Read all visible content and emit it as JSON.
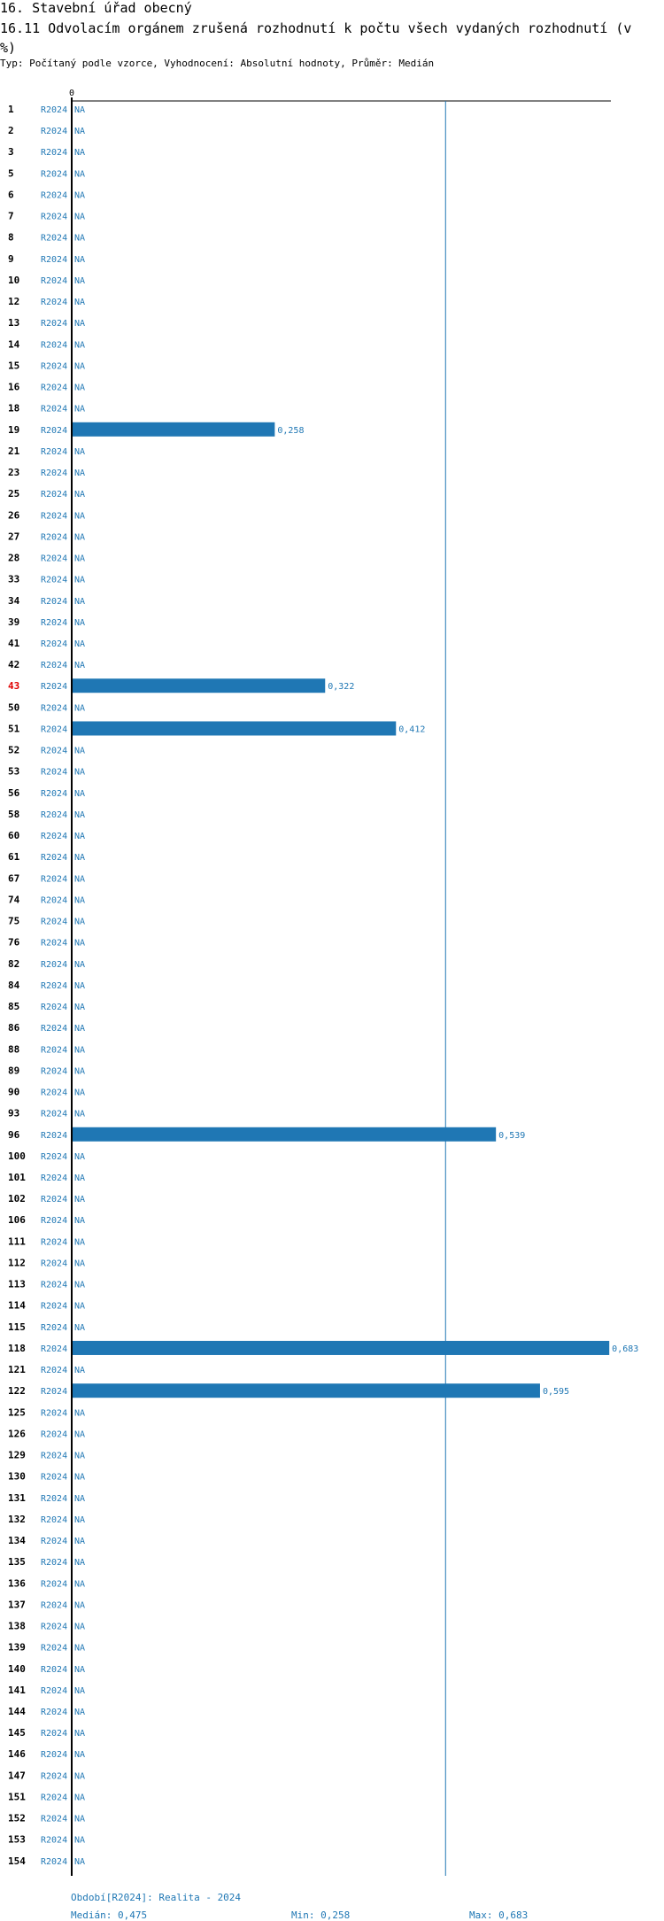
{
  "header": {
    "section_title": "16. Stavební úřad obecný",
    "chart_title": "16.11 Odvolacím orgánem zrušená rozhodnutí k počtu všech vydaných rozhodnutí (v %)",
    "subtitle": "Typ: Počítaný podle vzorce, Vyhodnocení: Absolutní hodnoty, Průměr: Medián"
  },
  "colors": {
    "bar": "#1f77b4",
    "text_blue": "#1f77b4",
    "highlight": "#e00000",
    "axis": "#000000"
  },
  "chart_data": {
    "type": "bar",
    "orientation": "horizontal",
    "axis_zero_label": "0",
    "xlim": [
      0,
      0.7
    ],
    "median_line": 0.475,
    "series_label": "R2024",
    "na_label": "NA",
    "highlighted_category": "43",
    "rows": [
      {
        "id": "1",
        "value": null,
        "label": "NA"
      },
      {
        "id": "2",
        "value": null,
        "label": "NA"
      },
      {
        "id": "3",
        "value": null,
        "label": "NA"
      },
      {
        "id": "5",
        "value": null,
        "label": "NA"
      },
      {
        "id": "6",
        "value": null,
        "label": "NA"
      },
      {
        "id": "7",
        "value": null,
        "label": "NA"
      },
      {
        "id": "8",
        "value": null,
        "label": "NA"
      },
      {
        "id": "9",
        "value": null,
        "label": "NA"
      },
      {
        "id": "10",
        "value": null,
        "label": "NA"
      },
      {
        "id": "12",
        "value": null,
        "label": "NA"
      },
      {
        "id": "13",
        "value": null,
        "label": "NA"
      },
      {
        "id": "14",
        "value": null,
        "label": "NA"
      },
      {
        "id": "15",
        "value": null,
        "label": "NA"
      },
      {
        "id": "16",
        "value": null,
        "label": "NA"
      },
      {
        "id": "18",
        "value": null,
        "label": "NA"
      },
      {
        "id": "19",
        "value": 0.258,
        "label": "0,258"
      },
      {
        "id": "21",
        "value": null,
        "label": "NA"
      },
      {
        "id": "23",
        "value": null,
        "label": "NA"
      },
      {
        "id": "25",
        "value": null,
        "label": "NA"
      },
      {
        "id": "26",
        "value": null,
        "label": "NA"
      },
      {
        "id": "27",
        "value": null,
        "label": "NA"
      },
      {
        "id": "28",
        "value": null,
        "label": "NA"
      },
      {
        "id": "33",
        "value": null,
        "label": "NA"
      },
      {
        "id": "34",
        "value": null,
        "label": "NA"
      },
      {
        "id": "39",
        "value": null,
        "label": "NA"
      },
      {
        "id": "41",
        "value": null,
        "label": "NA"
      },
      {
        "id": "42",
        "value": null,
        "label": "NA"
      },
      {
        "id": "43",
        "value": 0.322,
        "label": "0,322"
      },
      {
        "id": "50",
        "value": null,
        "label": "NA"
      },
      {
        "id": "51",
        "value": 0.412,
        "label": "0,412"
      },
      {
        "id": "52",
        "value": null,
        "label": "NA"
      },
      {
        "id": "53",
        "value": null,
        "label": "NA"
      },
      {
        "id": "56",
        "value": null,
        "label": "NA"
      },
      {
        "id": "58",
        "value": null,
        "label": "NA"
      },
      {
        "id": "60",
        "value": null,
        "label": "NA"
      },
      {
        "id": "61",
        "value": null,
        "label": "NA"
      },
      {
        "id": "67",
        "value": null,
        "label": "NA"
      },
      {
        "id": "74",
        "value": null,
        "label": "NA"
      },
      {
        "id": "75",
        "value": null,
        "label": "NA"
      },
      {
        "id": "76",
        "value": null,
        "label": "NA"
      },
      {
        "id": "82",
        "value": null,
        "label": "NA"
      },
      {
        "id": "84",
        "value": null,
        "label": "NA"
      },
      {
        "id": "85",
        "value": null,
        "label": "NA"
      },
      {
        "id": "86",
        "value": null,
        "label": "NA"
      },
      {
        "id": "88",
        "value": null,
        "label": "NA"
      },
      {
        "id": "89",
        "value": null,
        "label": "NA"
      },
      {
        "id": "90",
        "value": null,
        "label": "NA"
      },
      {
        "id": "93",
        "value": null,
        "label": "NA"
      },
      {
        "id": "96",
        "value": 0.539,
        "label": "0,539"
      },
      {
        "id": "100",
        "value": null,
        "label": "NA"
      },
      {
        "id": "101",
        "value": null,
        "label": "NA"
      },
      {
        "id": "102",
        "value": null,
        "label": "NA"
      },
      {
        "id": "106",
        "value": null,
        "label": "NA"
      },
      {
        "id": "111",
        "value": null,
        "label": "NA"
      },
      {
        "id": "112",
        "value": null,
        "label": "NA"
      },
      {
        "id": "113",
        "value": null,
        "label": "NA"
      },
      {
        "id": "114",
        "value": null,
        "label": "NA"
      },
      {
        "id": "115",
        "value": null,
        "label": "NA"
      },
      {
        "id": "118",
        "value": 0.683,
        "label": "0,683"
      },
      {
        "id": "121",
        "value": null,
        "label": "NA"
      },
      {
        "id": "122",
        "value": 0.595,
        "label": "0,595"
      },
      {
        "id": "125",
        "value": null,
        "label": "NA"
      },
      {
        "id": "126",
        "value": null,
        "label": "NA"
      },
      {
        "id": "129",
        "value": null,
        "label": "NA"
      },
      {
        "id": "130",
        "value": null,
        "label": "NA"
      },
      {
        "id": "131",
        "value": null,
        "label": "NA"
      },
      {
        "id": "132",
        "value": null,
        "label": "NA"
      },
      {
        "id": "134",
        "value": null,
        "label": "NA"
      },
      {
        "id": "135",
        "value": null,
        "label": "NA"
      },
      {
        "id": "136",
        "value": null,
        "label": "NA"
      },
      {
        "id": "137",
        "value": null,
        "label": "NA"
      },
      {
        "id": "138",
        "value": null,
        "label": "NA"
      },
      {
        "id": "139",
        "value": null,
        "label": "NA"
      },
      {
        "id": "140",
        "value": null,
        "label": "NA"
      },
      {
        "id": "141",
        "value": null,
        "label": "NA"
      },
      {
        "id": "144",
        "value": null,
        "label": "NA"
      },
      {
        "id": "145",
        "value": null,
        "label": "NA"
      },
      {
        "id": "146",
        "value": null,
        "label": "NA"
      },
      {
        "id": "147",
        "value": null,
        "label": "NA"
      },
      {
        "id": "151",
        "value": null,
        "label": "NA"
      },
      {
        "id": "152",
        "value": null,
        "label": "NA"
      },
      {
        "id": "153",
        "value": null,
        "label": "NA"
      },
      {
        "id": "154",
        "value": null,
        "label": "NA"
      }
    ]
  },
  "footer": {
    "period": "Období[R2024]: Realita - 2024",
    "median": "Medián: 0,475",
    "min": "Min: 0,258",
    "max": "Max: 0,683"
  }
}
